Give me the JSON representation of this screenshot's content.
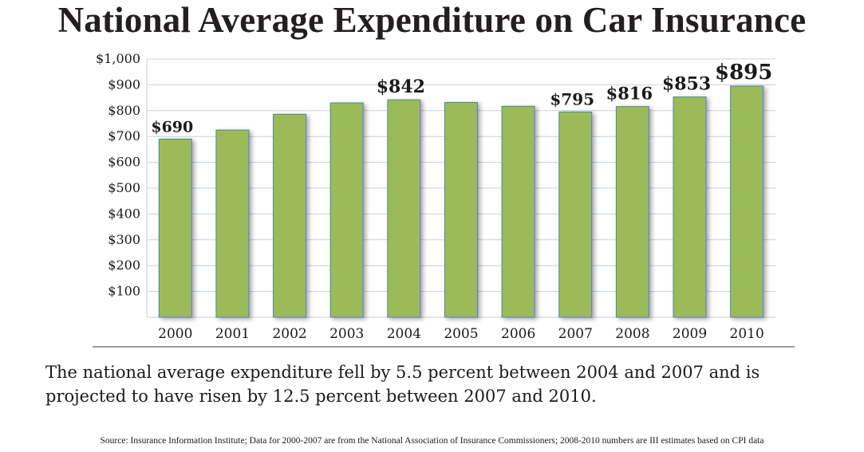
{
  "chart_data": {
    "type": "bar",
    "title": "National Average Expenditure on Car Insurance",
    "categories": [
      "2000",
      "2001",
      "2002",
      "2003",
      "2004",
      "2005",
      "2006",
      "2007",
      "2008",
      "2009",
      "2010"
    ],
    "values": [
      690,
      725,
      786,
      830,
      842,
      832,
      817,
      795,
      816,
      853,
      895
    ],
    "data_labels": {
      "2000": "$690",
      "2004": "$842",
      "2007": "$795",
      "2008": "$816",
      "2009": "$853",
      "2010": "$895"
    },
    "y_ticks": [
      100,
      200,
      300,
      400,
      500,
      600,
      700,
      800,
      900,
      1000
    ],
    "y_tick_labels": [
      "$100",
      "$200",
      "$300",
      "$400",
      "$500",
      "$600",
      "$700",
      "$800",
      "$900",
      "$1,000"
    ],
    "ylim": [
      0,
      1000
    ],
    "xlabel": "",
    "ylabel": "",
    "grid": true,
    "bar_color": "#9bbb59",
    "bar_edge_color": "#4f81bd"
  },
  "caption": "The national average expenditure fell by 5.5 percent between 2004 and 2007 and is projected to have risen by 12.5 percent between 2007 and 2010.",
  "source": "Source: Insurance Information Institute; Data for 2000-2007 are from the National Association of Insurance Commissioners; 2008-2010 numbers are III estimates based on CPI data"
}
